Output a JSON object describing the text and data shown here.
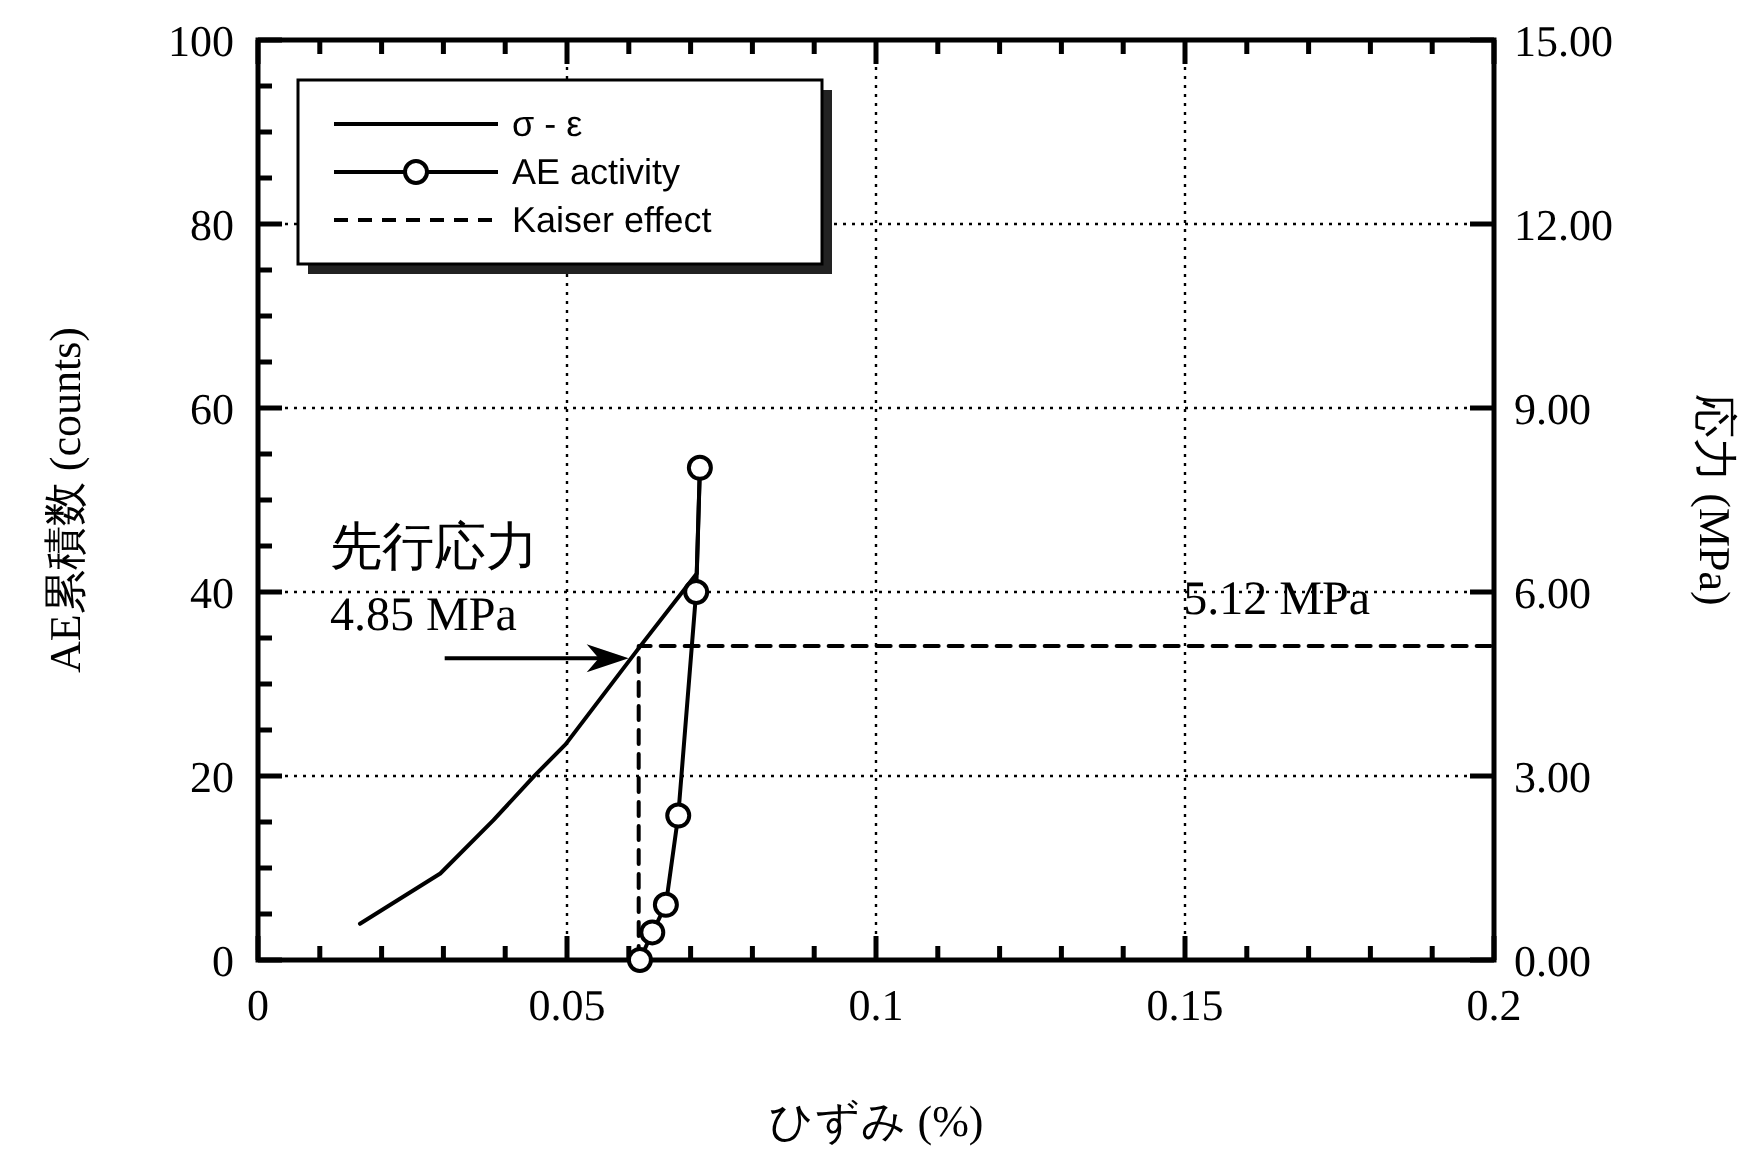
{
  "chart_data": {
    "type": "line",
    "xlabel": "ひずみ (%)",
    "ylabel": "AE累積数 (counts)",
    "y2label": "応力 (MPa)",
    "xlim": [
      0,
      0.2
    ],
    "xticks": [
      0,
      {
        "value": 0.01,
        "label": null
      },
      {
        "value": 0.02,
        "label": null
      },
      {
        "value": 0.03,
        "label": null
      },
      {
        "value": 0.04,
        "label": null
      },
      0.05,
      {
        "value": 0.06,
        "label": null
      },
      {
        "value": 0.07,
        "label": null
      },
      {
        "value": 0.08,
        "label": null
      },
      {
        "value": 0.09,
        "label": null
      },
      0.1,
      {
        "value": 0.11,
        "label": null
      },
      {
        "value": 0.12,
        "label": null
      },
      {
        "value": 0.13,
        "label": null
      },
      {
        "value": 0.14,
        "label": null
      },
      0.15,
      {
        "value": 0.16,
        "label": null
      },
      {
        "value": 0.17,
        "label": null
      },
      {
        "value": 0.18,
        "label": null
      },
      {
        "value": 0.19,
        "label": null
      },
      0.2
    ],
    "ylim": [
      0,
      100
    ],
    "yticks": [
      0,
      {
        "value": 5,
        "label": null
      },
      {
        "value": 10,
        "label": null
      },
      {
        "value": 15,
        "label": null
      },
      20,
      {
        "value": 25,
        "label": null
      },
      {
        "value": 30,
        "label": null
      },
      {
        "value": 35,
        "label": null
      },
      40,
      {
        "value": 45,
        "label": null
      },
      {
        "value": 50,
        "label": null
      },
      {
        "value": 55,
        "label": null
      },
      60,
      {
        "value": 65,
        "label": null
      },
      {
        "value": 70,
        "label": null
      },
      {
        "value": 75,
        "label": null
      },
      80,
      {
        "value": 85,
        "label": null
      },
      {
        "value": 90,
        "label": null
      },
      {
        "value": 95,
        "label": null
      },
      100
    ],
    "y2lim": [
      0,
      15
    ],
    "y2ticks": [
      {
        "value": 0,
        "label": "0.00"
      },
      {
        "value": 3,
        "label": "3.00"
      },
      {
        "value": 6,
        "label": "6.00"
      },
      {
        "value": 9,
        "label": "9.00"
      },
      {
        "value": 12,
        "label": "12.00"
      },
      {
        "value": 15,
        "label": "15.00"
      }
    ],
    "grid": true,
    "legend": "top left",
    "series": [
      {
        "name": "σ - ε",
        "color": "#000000",
        "axis": "y2",
        "marker": "none",
        "line_style": "solid",
        "x": [
          0.0165,
          0.0295,
          0.0381,
          0.0446,
          0.0498,
          0.0618,
          0.071,
          0.0715
        ],
        "values": [
          0.59,
          1.41,
          2.28,
          2.99,
          3.52,
          5.11,
          6.3,
          8.0
        ]
      },
      {
        "name": "AE activity",
        "color": "#000000",
        "marker": "circle",
        "line_style": "solid",
        "x": [
          0.0618,
          0.0638,
          0.066,
          0.068,
          0.0709,
          0.0715
        ],
        "values": [
          0,
          3,
          6,
          15.7,
          40,
          53.5
        ]
      },
      {
        "name": "Kaiser effect",
        "color": "#000000",
        "axis": "y2",
        "marker": "none",
        "line_style": "dashed",
        "x": [
          0.0616,
          0.0616,
          0.2
        ],
        "values": [
          0,
          5.12,
          5.12
        ]
      }
    ],
    "annotations": [
      "先行応力",
      {
        "text": "4.85 MPa",
        "x": 0.0616,
        "y": 34.1
      },
      {
        "text": "5.12 MPa",
        "x": 0.2,
        "y": 34.1
      }
    ]
  }
}
